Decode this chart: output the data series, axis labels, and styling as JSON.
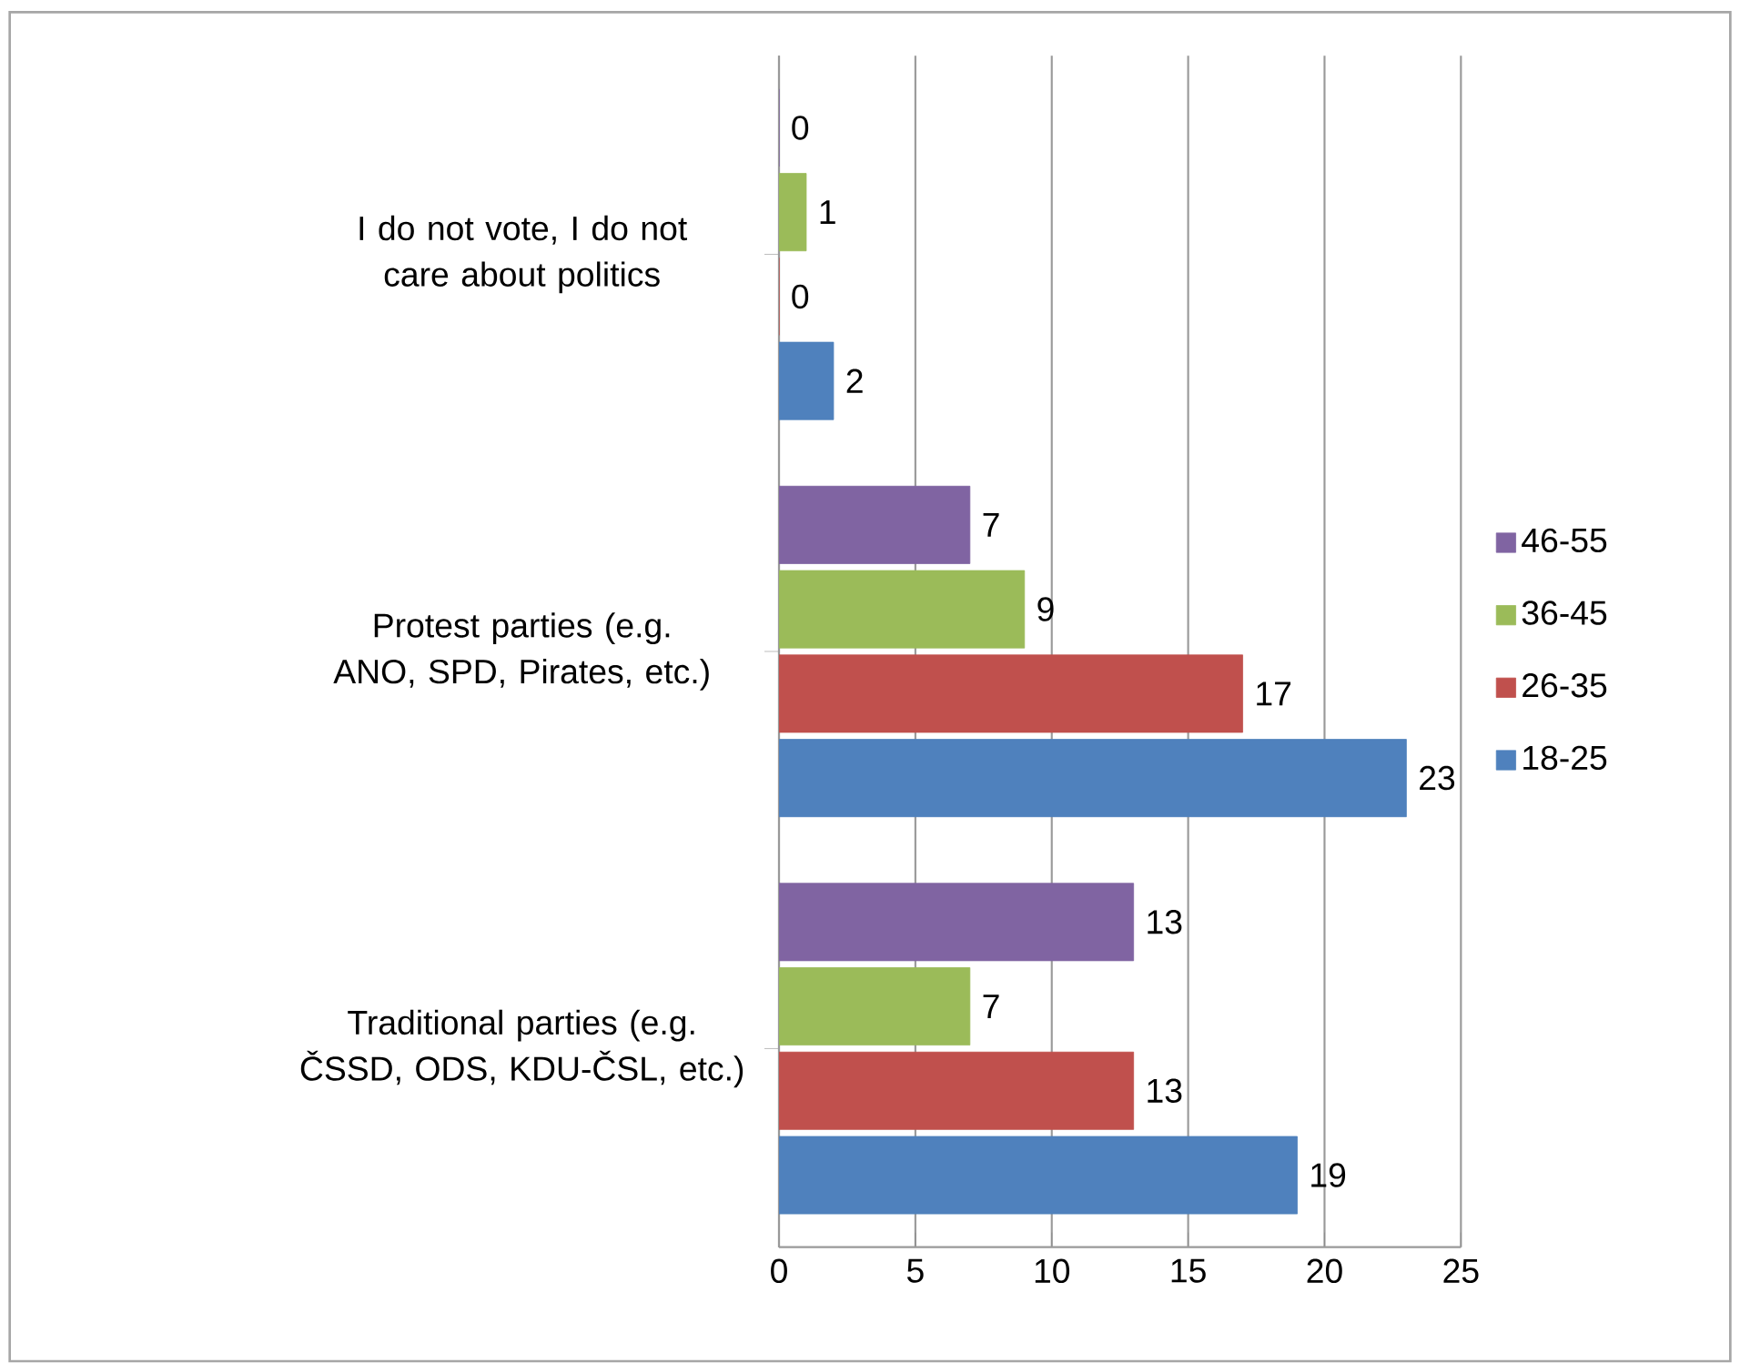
{
  "chart_data": {
    "type": "bar",
    "orientation": "horizontal",
    "categories": [
      "I do not vote, I do not care about politics",
      "Protest parties (e.g. ANO, SPD, Pirates, etc.)",
      "Traditional parties (e.g. ČSSD, ODS, KDU-ČSL, etc.)"
    ],
    "series": [
      {
        "name": "18-25",
        "color": "#4f81bd",
        "values": [
          2,
          23,
          19
        ]
      },
      {
        "name": "26-35",
        "color": "#c0504d",
        "values": [
          0,
          17,
          13
        ]
      },
      {
        "name": "36-45",
        "color": "#9bbb59",
        "values": [
          1,
          9,
          7
        ]
      },
      {
        "name": "46-55",
        "color": "#8064a2",
        "values": [
          0,
          7,
          13
        ]
      }
    ],
    "xlim": [
      0,
      25
    ],
    "xticks": [
      0,
      5,
      10,
      15,
      20,
      25
    ],
    "grid": "x",
    "legend": "right",
    "data_labels": true
  }
}
